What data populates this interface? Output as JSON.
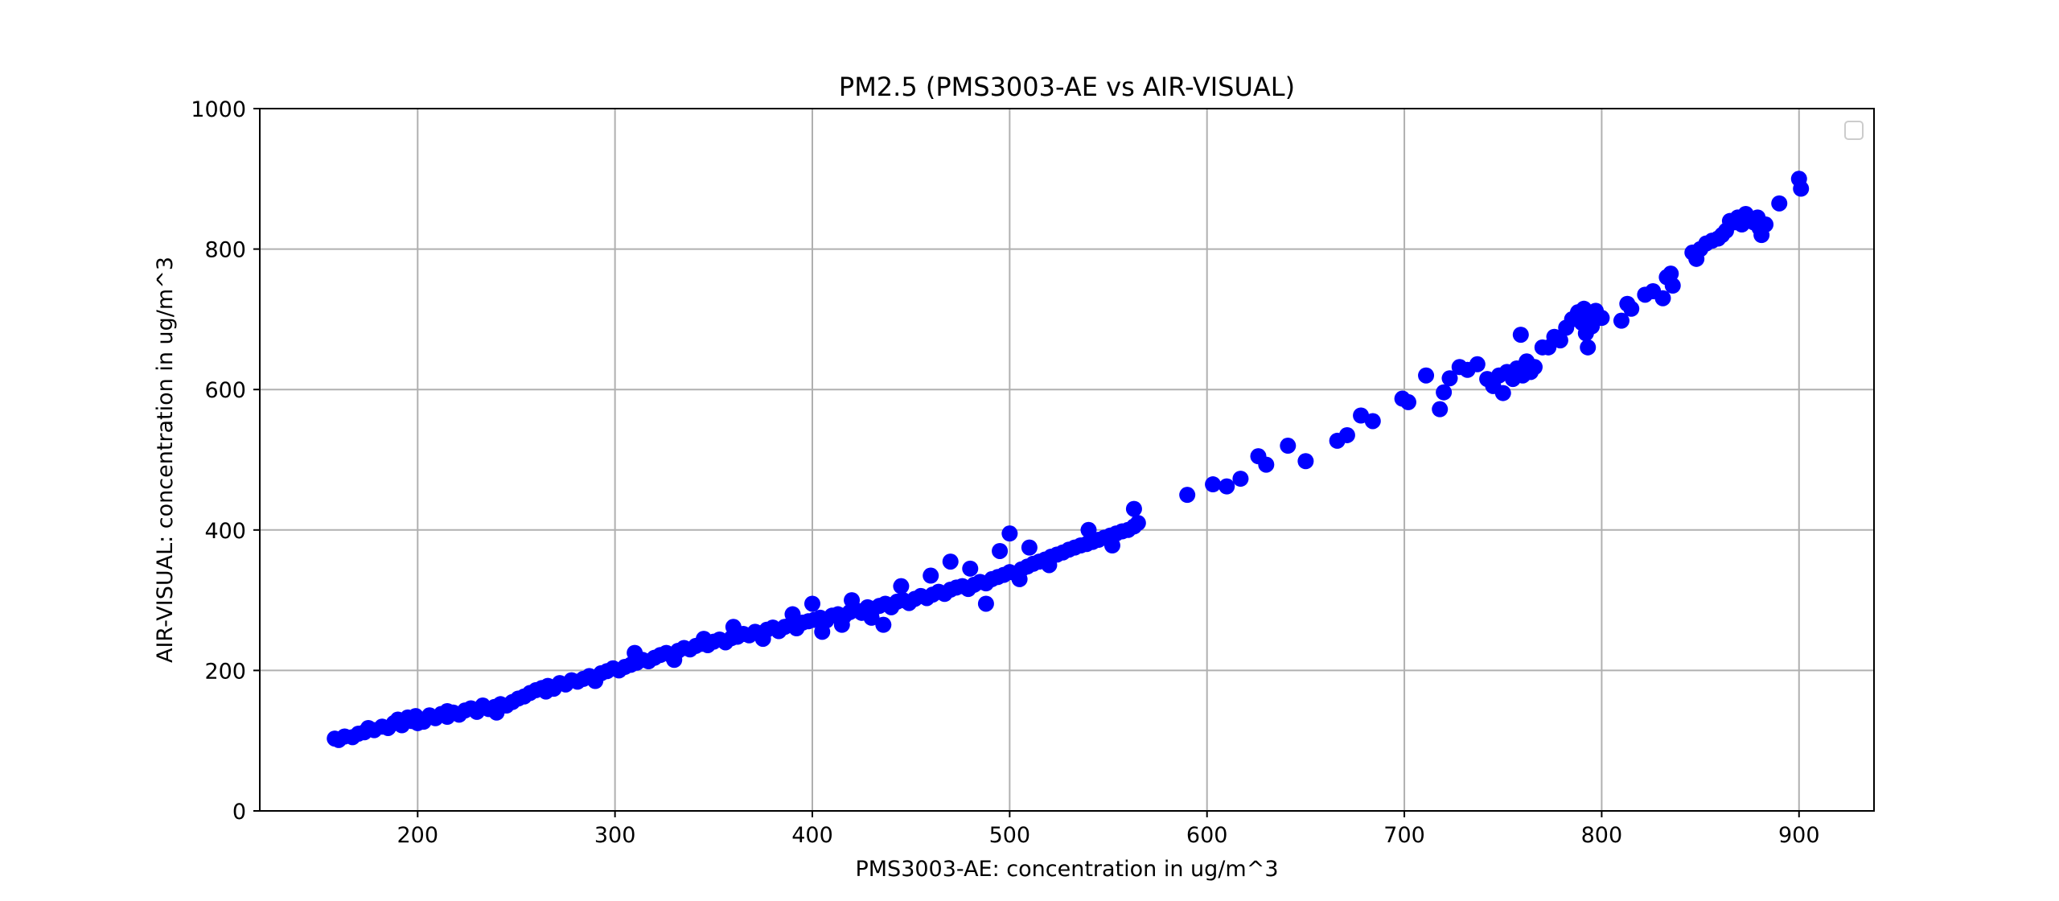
{
  "chart_data": {
    "type": "scatter",
    "title": "PM2.5 (PMS3003-AE vs AIR-VISUAL)",
    "xlabel": "PMS3003-AE: concentration in ug/m^3",
    "ylabel": "AIR-VISUAL: concentration in ug/m^3",
    "xlim": [
      120,
      938
    ],
    "ylim": [
      0,
      1000
    ],
    "xticks": [
      "200",
      "300",
      "400",
      "500",
      "600",
      "700",
      "800",
      "900"
    ],
    "yticks": [
      "0",
      "200",
      "400",
      "600",
      "800",
      "1000"
    ],
    "xtick_values": [
      200,
      300,
      400,
      500,
      600,
      700,
      800,
      900
    ],
    "ytick_values": [
      0,
      200,
      400,
      600,
      800,
      1000
    ],
    "grid": true,
    "legend": "top-right (empty)",
    "marker_color": "#0000ff",
    "series": [
      {
        "points": [
          [
            158,
            103
          ],
          [
            160,
            101
          ],
          [
            163,
            106
          ],
          [
            167,
            105
          ],
          [
            170,
            110
          ],
          [
            173,
            112
          ],
          [
            175,
            118
          ],
          [
            178,
            115
          ],
          [
            182,
            120
          ],
          [
            185,
            118
          ],
          [
            188,
            125
          ],
          [
            190,
            130
          ],
          [
            192,
            122
          ],
          [
            195,
            133
          ],
          [
            197,
            128
          ],
          [
            199,
            135
          ],
          [
            200,
            131
          ],
          [
            203,
            127
          ],
          [
            206,
            136
          ],
          [
            209,
            132
          ],
          [
            212,
            138
          ],
          [
            215,
            134
          ],
          [
            218,
            140
          ],
          [
            221,
            137
          ],
          [
            224,
            143
          ],
          [
            227,
            146
          ],
          [
            230,
            141
          ],
          [
            233,
            150
          ],
          [
            236,
            145
          ],
          [
            239,
            148
          ],
          [
            242,
            152
          ],
          [
            245,
            150
          ],
          [
            248,
            155
          ],
          [
            251,
            160
          ],
          [
            254,
            163
          ],
          [
            257,
            168
          ],
          [
            260,
            172
          ],
          [
            263,
            175
          ],
          [
            266,
            178
          ],
          [
            269,
            174
          ],
          [
            272,
            182
          ],
          [
            275,
            180
          ],
          [
            278,
            186
          ],
          [
            281,
            184
          ],
          [
            284,
            188
          ],
          [
            287,
            192
          ],
          [
            290,
            190
          ],
          [
            293,
            196
          ],
          [
            296,
            199
          ],
          [
            299,
            203
          ],
          [
            302,
            200
          ],
          [
            305,
            205
          ],
          [
            308,
            208
          ],
          [
            311,
            211
          ],
          [
            314,
            215
          ],
          [
            317,
            213
          ],
          [
            320,
            218
          ],
          [
            323,
            222
          ],
          [
            326,
            225
          ],
          [
            329,
            220
          ],
          [
            332,
            228
          ],
          [
            335,
            232
          ],
          [
            338,
            230
          ],
          [
            341,
            235
          ],
          [
            344,
            238
          ],
          [
            347,
            236
          ],
          [
            350,
            241
          ],
          [
            353,
            244
          ],
          [
            356,
            240
          ],
          [
            359,
            246
          ],
          [
            362,
            248
          ],
          [
            365,
            252
          ],
          [
            368,
            250
          ],
          [
            371,
            255
          ],
          [
            374,
            253
          ],
          [
            377,
            258
          ],
          [
            380,
            261
          ],
          [
            383,
            256
          ],
          [
            386,
            262
          ],
          [
            389,
            265
          ],
          [
            392,
            260
          ],
          [
            395,
            268
          ],
          [
            398,
            270
          ],
          [
            401,
            272
          ],
          [
            404,
            275
          ],
          [
            407,
            271
          ],
          [
            410,
            278
          ],
          [
            413,
            280
          ],
          [
            416,
            277
          ],
          [
            419,
            283
          ],
          [
            422,
            286
          ],
          [
            425,
            282
          ],
          [
            428,
            290
          ],
          [
            431,
            288
          ],
          [
            434,
            292
          ],
          [
            437,
            295
          ],
          [
            440,
            290
          ],
          [
            443,
            298
          ],
          [
            446,
            300
          ],
          [
            449,
            296
          ],
          [
            452,
            302
          ],
          [
            455,
            306
          ],
          [
            458,
            303
          ],
          [
            461,
            308
          ],
          [
            464,
            312
          ],
          [
            467,
            309
          ],
          [
            470,
            315
          ],
          [
            473,
            318
          ],
          [
            476,
            320
          ],
          [
            479,
            316
          ],
          [
            482,
            322
          ],
          [
            485,
            326
          ],
          [
            488,
            324
          ],
          [
            491,
            330
          ],
          [
            494,
            333
          ],
          [
            497,
            336
          ],
          [
            500,
            340
          ],
          [
            503,
            338
          ],
          [
            506,
            344
          ],
          [
            509,
            348
          ],
          [
            512,
            352
          ],
          [
            515,
            355
          ],
          [
            518,
            358
          ],
          [
            521,
            362
          ],
          [
            524,
            365
          ],
          [
            527,
            368
          ],
          [
            530,
            372
          ],
          [
            533,
            375
          ],
          [
            536,
            378
          ],
          [
            539,
            380
          ],
          [
            542,
            383
          ],
          [
            545,
            386
          ],
          [
            548,
            389
          ],
          [
            551,
            392
          ],
          [
            554,
            395
          ],
          [
            557,
            398
          ],
          [
            560,
            400
          ],
          [
            563,
            405
          ],
          [
            565,
            410
          ],
          [
            200,
            125
          ],
          [
            215,
            142
          ],
          [
            240,
            140
          ],
          [
            265,
            170
          ],
          [
            290,
            185
          ],
          [
            310,
            225
          ],
          [
            330,
            215
          ],
          [
            345,
            245
          ],
          [
            360,
            262
          ],
          [
            375,
            245
          ],
          [
            390,
            280
          ],
          [
            400,
            295
          ],
          [
            405,
            255
          ],
          [
            415,
            265
          ],
          [
            420,
            300
          ],
          [
            430,
            275
          ],
          [
            436,
            265
          ],
          [
            445,
            320
          ],
          [
            460,
            335
          ],
          [
            470,
            355
          ],
          [
            480,
            345
          ],
          [
            488,
            295
          ],
          [
            495,
            370
          ],
          [
            500,
            395
          ],
          [
            505,
            330
          ],
          [
            510,
            375
          ],
          [
            520,
            350
          ],
          [
            540,
            400
          ],
          [
            563,
            430
          ],
          [
            552,
            378
          ],
          [
            590,
            450
          ],
          [
            603,
            465
          ],
          [
            610,
            462
          ],
          [
            617,
            473
          ],
          [
            626,
            505
          ],
          [
            630,
            493
          ],
          [
            641,
            520
          ],
          [
            650,
            498
          ],
          [
            666,
            527
          ],
          [
            671,
            535
          ],
          [
            678,
            563
          ],
          [
            684,
            555
          ],
          [
            699,
            587
          ],
          [
            702,
            582
          ],
          [
            711,
            620
          ],
          [
            718,
            572
          ],
          [
            720,
            596
          ],
          [
            723,
            616
          ],
          [
            728,
            632
          ],
          [
            732,
            628
          ],
          [
            737,
            636
          ],
          [
            742,
            615
          ],
          [
            745,
            605
          ],
          [
            748,
            620
          ],
          [
            750,
            595
          ],
          [
            752,
            625
          ],
          [
            755,
            615
          ],
          [
            757,
            630
          ],
          [
            759,
            678
          ],
          [
            760,
            620
          ],
          [
            762,
            640
          ],
          [
            764,
            625
          ],
          [
            766,
            632
          ],
          [
            770,
            660
          ],
          [
            773,
            660
          ],
          [
            776,
            675
          ],
          [
            779,
            670
          ],
          [
            782,
            688
          ],
          [
            785,
            700
          ],
          [
            788,
            710
          ],
          [
            790,
            695
          ],
          [
            791,
            715
          ],
          [
            792,
            680
          ],
          [
            793,
            660
          ],
          [
            794,
            702
          ],
          [
            795,
            690
          ],
          [
            797,
            712
          ],
          [
            800,
            702
          ],
          [
            810,
            698
          ],
          [
            813,
            722
          ],
          [
            815,
            715
          ],
          [
            822,
            735
          ],
          [
            826,
            740
          ],
          [
            831,
            730
          ],
          [
            833,
            760
          ],
          [
            835,
            765
          ],
          [
            836,
            748
          ],
          [
            846,
            795
          ],
          [
            848,
            786
          ],
          [
            850,
            800
          ],
          [
            853,
            808
          ],
          [
            856,
            812
          ],
          [
            859,
            815
          ],
          [
            861,
            820
          ],
          [
            863,
            826
          ],
          [
            865,
            840
          ],
          [
            867,
            838
          ],
          [
            869,
            845
          ],
          [
            871,
            835
          ],
          [
            873,
            850
          ],
          [
            875,
            842
          ],
          [
            877,
            838
          ],
          [
            879,
            845
          ],
          [
            880,
            830
          ],
          [
            881,
            820
          ],
          [
            883,
            835
          ],
          [
            890,
            865
          ],
          [
            900,
            900
          ],
          [
            901,
            886
          ]
        ]
      }
    ]
  }
}
